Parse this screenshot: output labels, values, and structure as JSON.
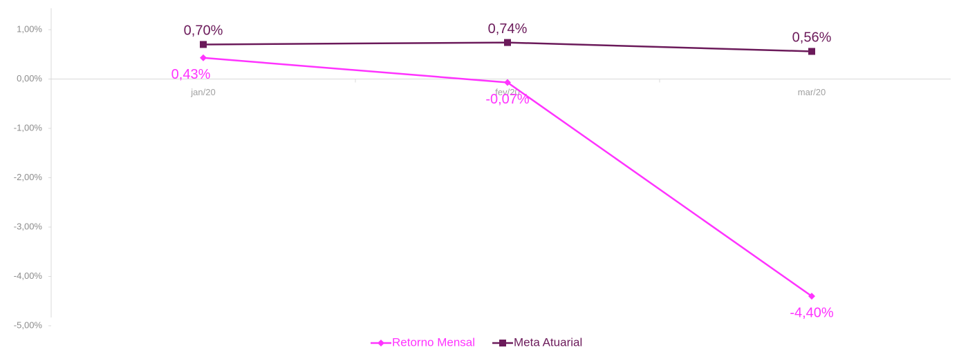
{
  "chart_data": {
    "type": "line",
    "categories": [
      "jan/20",
      "fev/20",
      "mar/20"
    ],
    "series": [
      {
        "name": "Retorno Mensal",
        "color": "#ff33ff",
        "marker": "diamond",
        "label_position": "below",
        "values": [
          0.43,
          -0.07,
          -4.4
        ],
        "value_labels": [
          "0,43%",
          "-0,07%",
          "-4,40%"
        ]
      },
      {
        "name": "Meta Atuarial",
        "color": "#6b1a5a",
        "marker": "square",
        "label_position": "above",
        "values": [
          0.7,
          0.74,
          0.56
        ],
        "value_labels": [
          "0,70%",
          "0,74%",
          "0,56%"
        ]
      }
    ],
    "ylim": [
      -5,
      1
    ],
    "yticks": [
      {
        "value": 1,
        "label": "1,00%"
      },
      {
        "value": 0,
        "label": "0,00%"
      },
      {
        "value": -1,
        "label": "-1,00%"
      },
      {
        "value": -2,
        "label": "-2,00%"
      },
      {
        "value": -3,
        "label": "-3,00%"
      },
      {
        "value": -4,
        "label": "-4,00%"
      },
      {
        "value": -5,
        "label": "-5,00%"
      }
    ],
    "legend": "bottom"
  }
}
